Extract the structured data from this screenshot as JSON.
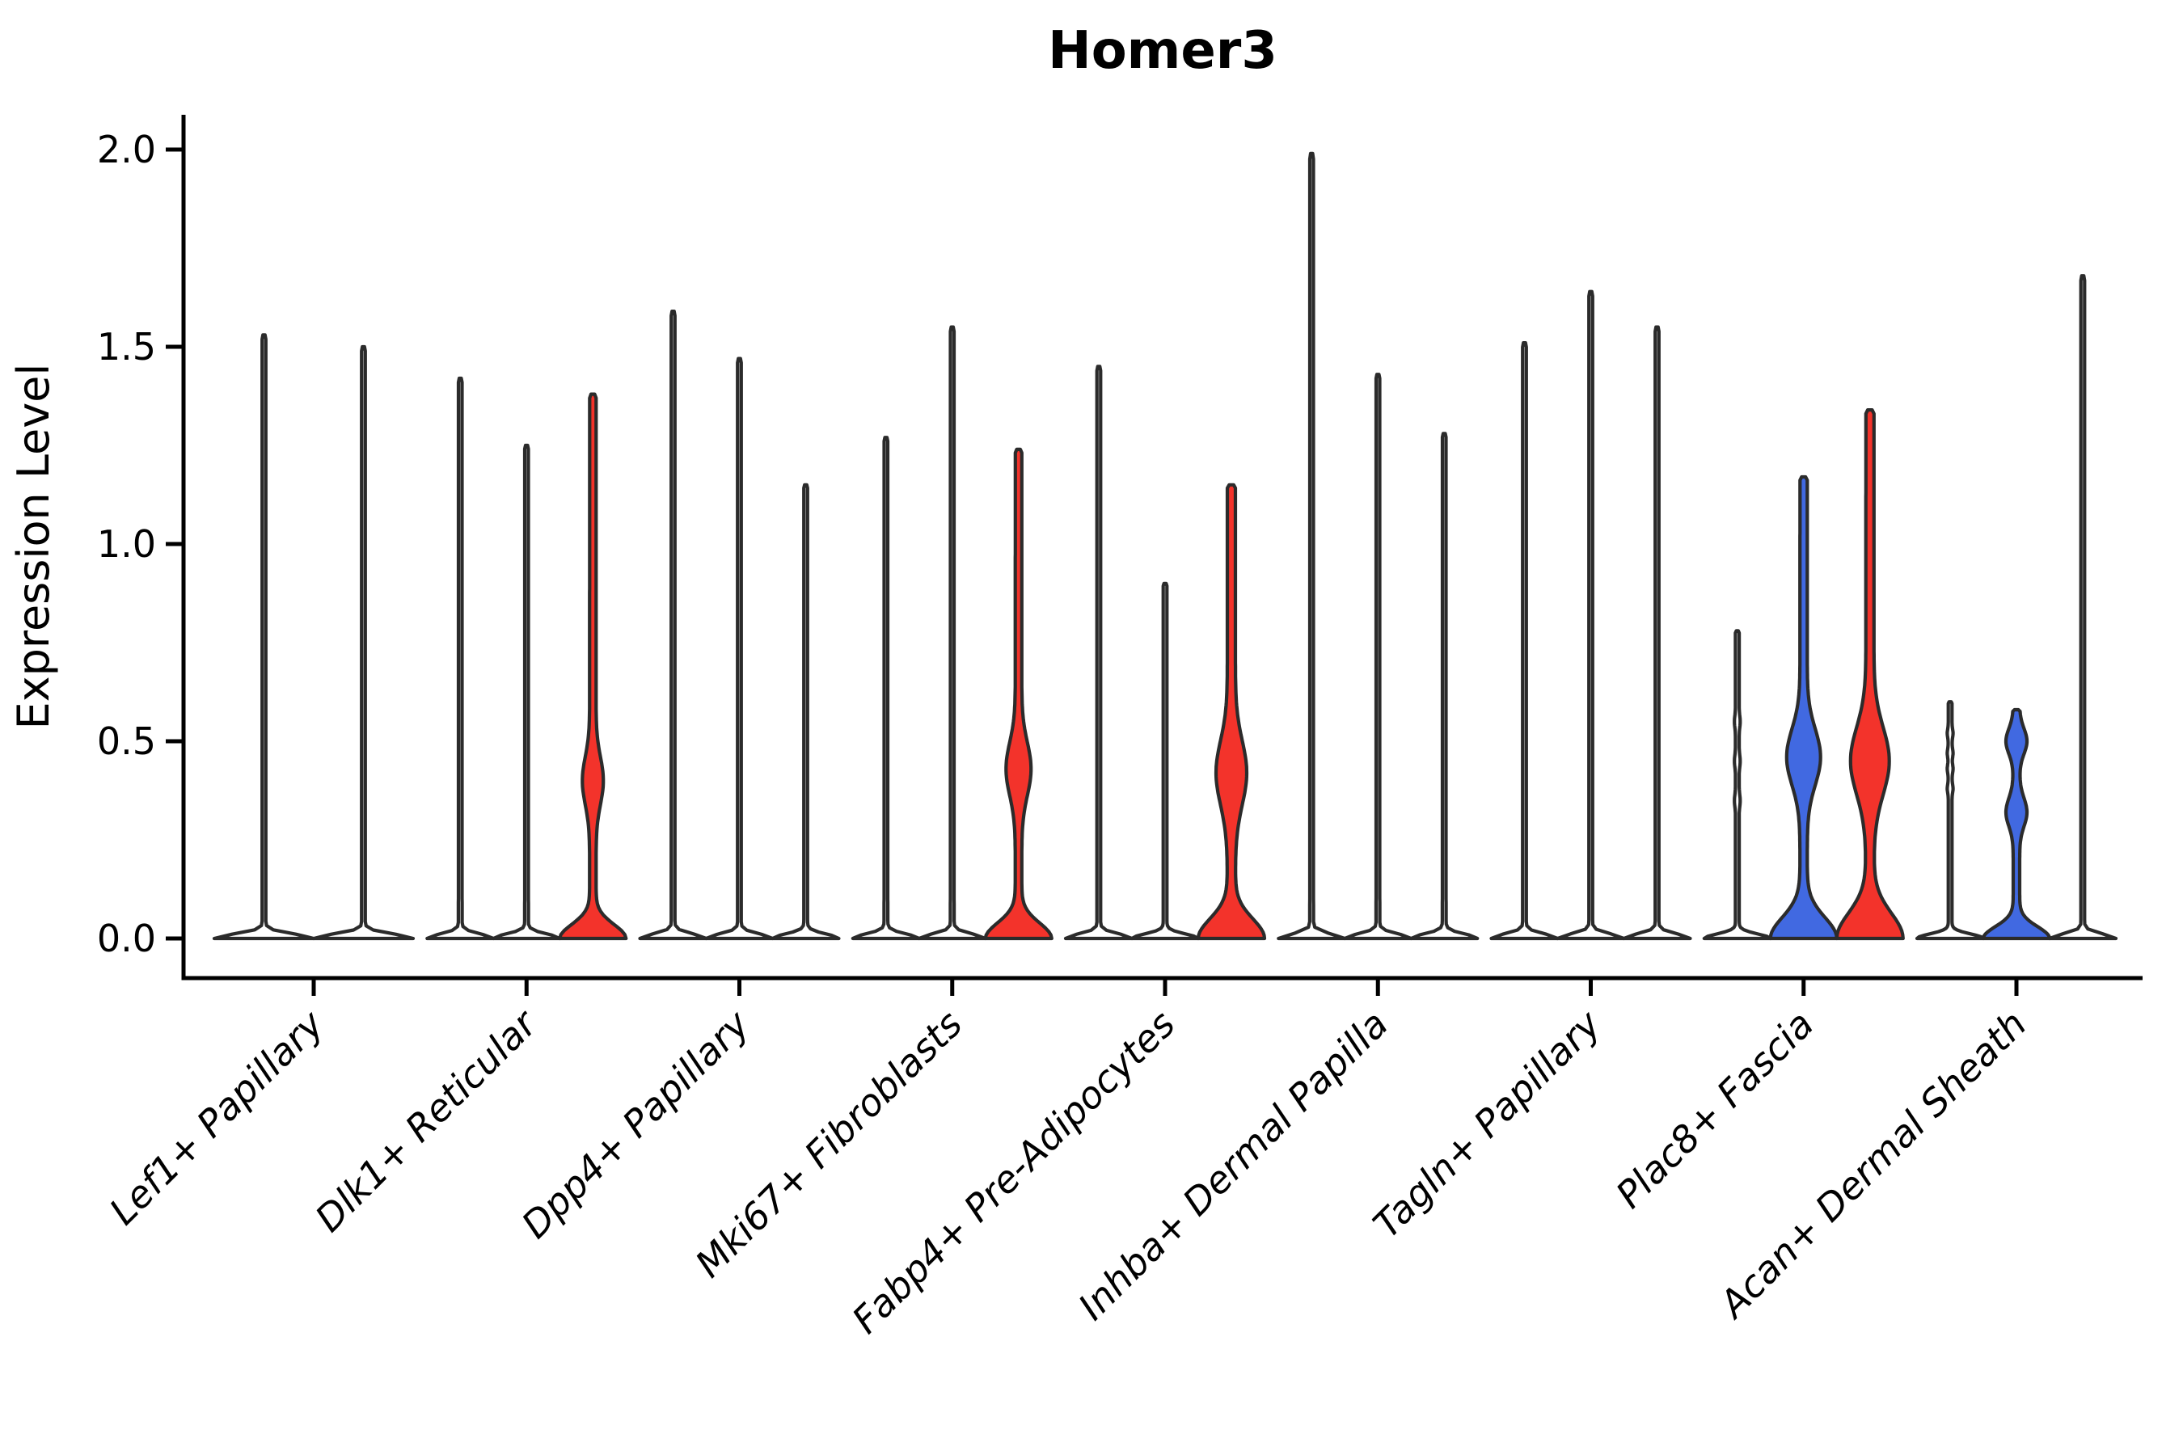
{
  "chart_data": {
    "type": "violin",
    "title": "Homer3",
    "ylabel": "Expression Level",
    "xlabel": "",
    "legend": "none",
    "grid": false,
    "y_axis": {
      "ticks": [
        0.0,
        0.5,
        1.0,
        1.5,
        2.0
      ],
      "tick_labels": [
        "0.0",
        "0.5",
        "1.0",
        "1.5",
        "2.0"
      ],
      "ylim": [
        0.0,
        2.09
      ]
    },
    "categories": [
      "Lef1+ Papillary",
      "Dlk1+ Reticular",
      "Dpp4+ Papillary",
      "Mki67+ Fibroblasts",
      "Fabp4+ Pre-Adipocytes",
      "Inhba+ Dermal Papilla",
      "Tagln+ Papillary",
      "Plac8+ Fascia",
      "Acan+ Dermal Sheath"
    ],
    "colors": {
      "red": "#F3332B",
      "blue": "#4169E1",
      "white": "#FFFFFF",
      "outline": "#2B2B2B",
      "axis": "#000000"
    },
    "groups": [
      {
        "category": "Lef1+ Papillary",
        "violins": [
          {
            "max": 1.53,
            "fill": "white",
            "stem": 2.3,
            "base_sigma": 0.016,
            "bulges": []
          },
          {
            "max": 1.5,
            "fill": "white",
            "stem": 2.3,
            "base_sigma": 0.016,
            "bulges": []
          }
        ]
      },
      {
        "category": "Dlk1+ Reticular",
        "violins": [
          {
            "max": 1.42,
            "fill": "white",
            "stem": 2.3,
            "base_sigma": 0.016,
            "bulges": []
          },
          {
            "max": 1.25,
            "fill": "white",
            "stem": 2.3,
            "base_sigma": 0.016,
            "bulges": []
          },
          {
            "max": 1.38,
            "fill": "red",
            "stem": 4.0,
            "base_sigma": 0.05,
            "bulges": [
              [
                0.4,
                0.085,
                9.0
              ]
            ]
          }
        ]
      },
      {
        "category": "Dpp4+ Papillary",
        "violins": [
          {
            "max": 1.59,
            "fill": "white",
            "stem": 2.3,
            "base_sigma": 0.016,
            "bulges": []
          },
          {
            "max": 1.47,
            "fill": "white",
            "stem": 2.3,
            "base_sigma": 0.016,
            "bulges": []
          },
          {
            "max": 1.15,
            "fill": "white",
            "stem": 2.3,
            "base_sigma": 0.016,
            "bulges": []
          }
        ]
      },
      {
        "category": "Mki67+ Fibroblasts",
        "violins": [
          {
            "max": 1.27,
            "fill": "white",
            "stem": 2.3,
            "base_sigma": 0.016,
            "bulges": []
          },
          {
            "max": 1.55,
            "fill": "white",
            "stem": 2.3,
            "base_sigma": 0.016,
            "bulges": []
          },
          {
            "max": 1.24,
            "fill": "red",
            "stem": 4.0,
            "base_sigma": 0.055,
            "bulges": [
              [
                0.43,
                0.095,
                11.5
              ]
            ]
          }
        ]
      },
      {
        "category": "Fabp4+ Pre-Adipocytes",
        "violins": [
          {
            "max": 1.45,
            "fill": "white",
            "stem": 2.3,
            "base_sigma": 0.016,
            "bulges": []
          },
          {
            "max": 0.9,
            "fill": "white",
            "stem": 2.3,
            "base_sigma": 0.016,
            "bulges": []
          },
          {
            "max": 1.15,
            "fill": "red",
            "stem": 5.0,
            "base_sigma": 0.07,
            "bulges": [
              [
                0.42,
                0.115,
                14.0
              ]
            ]
          }
        ]
      },
      {
        "category": "Inhba+ Dermal Papilla",
        "violins": [
          {
            "max": 1.99,
            "fill": "white",
            "stem": 2.3,
            "base_sigma": 0.016,
            "bulges": []
          },
          {
            "max": 1.43,
            "fill": "white",
            "stem": 2.3,
            "base_sigma": 0.016,
            "bulges": []
          },
          {
            "max": 1.28,
            "fill": "white",
            "stem": 2.3,
            "base_sigma": 0.016,
            "bulges": []
          }
        ]
      },
      {
        "category": "Tagln+ Papillary",
        "violins": [
          {
            "max": 1.51,
            "fill": "white",
            "stem": 2.3,
            "base_sigma": 0.016,
            "bulges": []
          },
          {
            "max": 1.64,
            "fill": "white",
            "stem": 2.3,
            "base_sigma": 0.016,
            "bulges": []
          },
          {
            "max": 1.55,
            "fill": "white",
            "stem": 2.3,
            "base_sigma": 0.016,
            "bulges": []
          }
        ]
      },
      {
        "category": "Plac8+ Fascia",
        "violins": [
          {
            "max": 0.78,
            "fill": "white",
            "stem": 2.3,
            "base_sigma": 0.016,
            "bulges": [
              [
                0.35,
                0.02,
                1.3
              ],
              [
                0.45,
                0.02,
                1.3
              ],
              [
                0.55,
                0.02,
                1.3
              ]
            ]
          },
          {
            "max": 1.17,
            "fill": "blue",
            "stem": 4.5,
            "base_sigma": 0.075,
            "bulges": [
              [
                0.46,
                0.1,
                16.5
              ]
            ]
          },
          {
            "max": 1.34,
            "fill": "red",
            "stem": 5.0,
            "base_sigma": 0.09,
            "bulges": [
              [
                0.45,
                0.12,
                19.0
              ]
            ]
          }
        ]
      },
      {
        "category": "Acan+ Dermal Sheath",
        "violins": [
          {
            "max": 0.6,
            "fill": "white",
            "stem": 2.3,
            "base_sigma": 0.016,
            "bulges": [
              [
                0.38,
                0.015,
                1.3
              ],
              [
                0.43,
                0.015,
                1.3
              ],
              [
                0.47,
                0.015,
                1.3
              ],
              [
                0.52,
                0.015,
                1.3
              ]
            ]
          },
          {
            "max": 0.58,
            "fill": "blue",
            "stem": 4.0,
            "base_sigma": 0.042,
            "bulges": [
              [
                0.5,
                0.045,
                9.0
              ],
              [
                0.32,
                0.05,
                9.0
              ]
            ]
          },
          {
            "max": 1.68,
            "fill": "white",
            "stem": 2.3,
            "base_sigma": 0.016,
            "bulges": []
          }
        ]
      }
    ]
  }
}
